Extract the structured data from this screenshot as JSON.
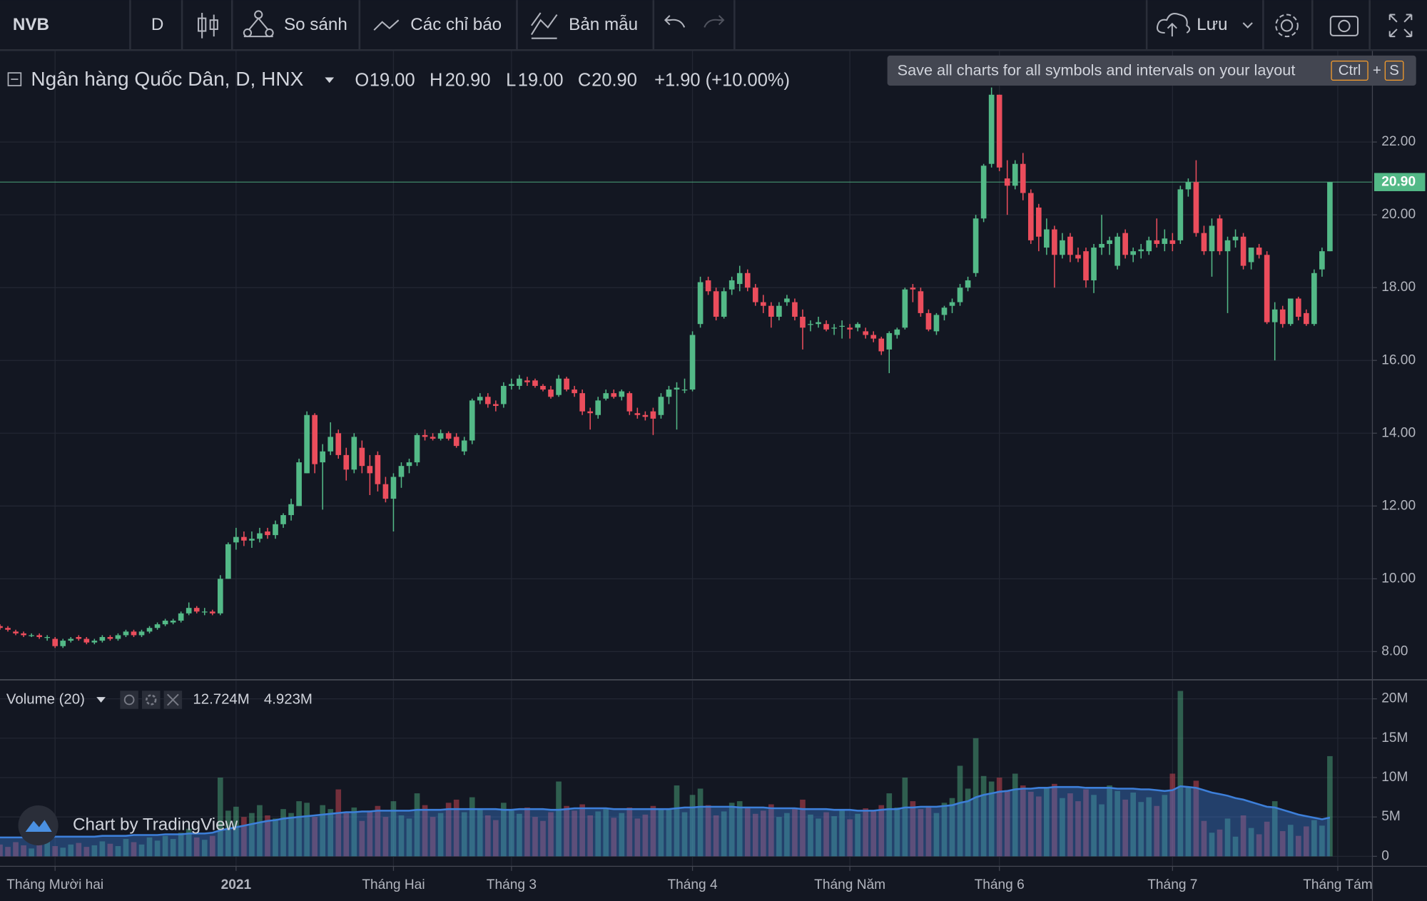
{
  "toolbar": {
    "symbol": "NVB",
    "interval": "D",
    "compare": "So sánh",
    "indicators": "Các chỉ báo",
    "templates": "Bản mẫu",
    "save": "Lưu"
  },
  "tooltip": {
    "text": "Save all charts for all symbols and intervals on your layout",
    "key1": "Ctrl",
    "plus": "+",
    "key2": "S"
  },
  "watermark": "Chart by TradingView",
  "chart_data": {
    "type": "candlestick",
    "legend": {
      "symbol": "Ngân hàng Quốc Dân, D, HNX",
      "fields": [
        {
          "key": "O",
          "text": "19.00"
        },
        {
          "key": "H",
          "text": "20.90"
        },
        {
          "key": "L",
          "text": "19.00"
        },
        {
          "key": "C",
          "text": "20.90"
        }
      ],
      "change": "+1.90 (+10.00%)"
    },
    "up_color": "#53b987",
    "down_color": "#eb4d5c",
    "grid": true,
    "xlim": [
      0,
      174.4
    ],
    "xticks": [
      {
        "value": 7,
        "label": "Tháng Mười hai"
      },
      {
        "value": 30,
        "label": "2021"
      },
      {
        "value": 50,
        "label": "Tháng Hai"
      },
      {
        "value": 65,
        "label": "Tháng 3"
      },
      {
        "value": 88,
        "label": "Tháng 4"
      },
      {
        "value": 108,
        "label": "Tháng Năm"
      },
      {
        "value": 127,
        "label": "Tháng 6"
      },
      {
        "value": 149,
        "label": "Tháng 7"
      },
      {
        "value": 170,
        "label": "Tháng Tám"
      }
    ],
    "ylim": [
      7.25,
      24.35
    ],
    "yticks": [
      {
        "value": 8,
        "label": "8.00"
      },
      {
        "value": 10,
        "label": "10.00"
      },
      {
        "value": 12,
        "label": "12.00"
      },
      {
        "value": 14,
        "label": "14.00"
      },
      {
        "value": 16,
        "label": "16.00"
      },
      {
        "value": 18,
        "label": "18.00"
      },
      {
        "value": 20,
        "label": "20.00"
      },
      {
        "value": 22,
        "label": "22.00"
      }
    ],
    "last_price": {
      "value": 20.9,
      "label": "20.90"
    },
    "ohlc": [
      [
        8.7,
        8.75,
        8.6,
        8.65
      ],
      [
        8.65,
        8.7,
        8.55,
        8.6
      ],
      [
        8.55,
        8.6,
        8.45,
        8.5
      ],
      [
        8.5,
        8.55,
        8.4,
        8.45
      ],
      [
        8.45,
        8.5,
        8.4,
        8.45
      ],
      [
        8.45,
        8.5,
        8.35,
        8.4
      ],
      [
        8.4,
        8.45,
        8.3,
        8.4
      ],
      [
        8.35,
        8.4,
        8.1,
        8.15
      ],
      [
        8.15,
        8.35,
        8.1,
        8.3
      ],
      [
        8.3,
        8.4,
        8.25,
        8.35
      ],
      [
        8.4,
        8.45,
        8.3,
        8.35
      ],
      [
        8.35,
        8.4,
        8.2,
        8.25
      ],
      [
        8.25,
        8.35,
        8.2,
        8.3
      ],
      [
        8.3,
        8.45,
        8.25,
        8.4
      ],
      [
        8.4,
        8.45,
        8.3,
        8.35
      ],
      [
        8.35,
        8.5,
        8.3,
        8.45
      ],
      [
        8.45,
        8.6,
        8.4,
        8.55
      ],
      [
        8.55,
        8.6,
        8.4,
        8.45
      ],
      [
        8.45,
        8.6,
        8.4,
        8.55
      ],
      [
        8.55,
        8.7,
        8.5,
        8.65
      ],
      [
        8.65,
        8.8,
        8.6,
        8.75
      ],
      [
        8.75,
        8.9,
        8.7,
        8.85
      ],
      [
        8.8,
        8.9,
        8.75,
        8.85
      ],
      [
        8.85,
        9.1,
        8.8,
        9.05
      ],
      [
        9.05,
        9.35,
        9.0,
        9.2
      ],
      [
        9.2,
        9.25,
        9.05,
        9.1
      ],
      [
        9.1,
        9.2,
        9.0,
        9.1
      ],
      [
        9.1,
        9.15,
        9.0,
        9.05
      ],
      [
        9.05,
        10.1,
        9.0,
        10.0
      ],
      [
        10.0,
        11.0,
        10.0,
        10.95
      ],
      [
        11.0,
        11.4,
        10.8,
        11.15
      ],
      [
        11.15,
        11.3,
        10.9,
        11.05
      ],
      [
        11.05,
        11.3,
        10.85,
        11.1
      ],
      [
        11.1,
        11.4,
        11.0,
        11.25
      ],
      [
        11.3,
        11.4,
        11.1,
        11.2
      ],
      [
        11.2,
        11.6,
        11.1,
        11.5
      ],
      [
        11.5,
        11.8,
        11.4,
        11.75
      ],
      [
        11.75,
        12.2,
        11.6,
        12.05
      ],
      [
        12.0,
        13.3,
        12.0,
        13.2
      ],
      [
        12.9,
        14.6,
        12.9,
        14.5
      ],
      [
        14.5,
        14.55,
        12.9,
        13.15
      ],
      [
        13.2,
        13.7,
        11.9,
        13.5
      ],
      [
        13.5,
        14.3,
        13.4,
        13.9
      ],
      [
        14.0,
        14.1,
        13.3,
        13.4
      ],
      [
        13.4,
        13.6,
        12.7,
        13.0
      ],
      [
        13.0,
        14.0,
        12.9,
        13.9
      ],
      [
        13.6,
        13.8,
        12.9,
        13.1
      ],
      [
        13.1,
        13.4,
        12.3,
        12.9
      ],
      [
        13.4,
        13.5,
        12.4,
        12.6
      ],
      [
        12.6,
        12.8,
        12.1,
        12.2
      ],
      [
        12.2,
        12.9,
        11.3,
        12.8
      ],
      [
        12.8,
        13.2,
        12.5,
        13.1
      ],
      [
        13.1,
        13.3,
        12.9,
        13.2
      ],
      [
        13.2,
        14.0,
        13.1,
        13.95
      ],
      [
        13.95,
        14.1,
        13.8,
        13.9
      ],
      [
        13.9,
        14.0,
        13.8,
        13.85
      ],
      [
        13.85,
        14.1,
        13.8,
        14.0
      ],
      [
        14.0,
        14.05,
        13.8,
        13.85
      ],
      [
        13.9,
        14.0,
        13.6,
        13.65
      ],
      [
        13.5,
        13.9,
        13.4,
        13.8
      ],
      [
        13.8,
        14.95,
        13.7,
        14.9
      ],
      [
        14.9,
        15.1,
        14.8,
        15.0
      ],
      [
        15.0,
        15.1,
        14.7,
        14.8
      ],
      [
        14.8,
        14.9,
        14.6,
        14.75
      ],
      [
        14.8,
        15.4,
        14.7,
        15.3
      ],
      [
        15.3,
        15.5,
        15.2,
        15.35
      ],
      [
        15.3,
        15.6,
        15.2,
        15.5
      ],
      [
        15.45,
        15.55,
        15.3,
        15.4
      ],
      [
        15.45,
        15.5,
        15.25,
        15.3
      ],
      [
        15.3,
        15.35,
        15.15,
        15.2
      ],
      [
        15.2,
        15.3,
        14.95,
        15.0
      ],
      [
        15.05,
        15.6,
        15.0,
        15.5
      ],
      [
        15.5,
        15.55,
        15.15,
        15.2
      ],
      [
        15.2,
        15.3,
        15.0,
        15.1
      ],
      [
        15.1,
        15.2,
        14.5,
        14.6
      ],
      [
        14.6,
        14.7,
        14.1,
        14.55
      ],
      [
        14.5,
        15.0,
        14.4,
        14.9
      ],
      [
        14.95,
        15.2,
        14.9,
        15.1
      ],
      [
        15.1,
        15.2,
        14.95,
        15.0
      ],
      [
        15.0,
        15.2,
        14.9,
        15.15
      ],
      [
        15.1,
        15.15,
        14.5,
        14.6
      ],
      [
        14.55,
        14.7,
        14.4,
        14.5
      ],
      [
        14.5,
        14.6,
        14.35,
        14.45
      ],
      [
        14.6,
        14.7,
        13.95,
        14.4
      ],
      [
        14.5,
        15.1,
        14.4,
        15.0
      ],
      [
        15.0,
        15.3,
        14.8,
        15.2
      ],
      [
        15.2,
        15.4,
        14.1,
        15.25
      ],
      [
        15.2,
        15.5,
        15.1,
        15.2
      ],
      [
        15.2,
        16.8,
        15.15,
        16.7
      ],
      [
        17.0,
        18.3,
        16.9,
        18.15
      ],
      [
        18.2,
        18.3,
        17.8,
        17.9
      ],
      [
        17.9,
        18.0,
        17.1,
        17.2
      ],
      [
        17.2,
        18.0,
        17.15,
        17.9
      ],
      [
        17.95,
        18.3,
        17.8,
        18.2
      ],
      [
        18.1,
        18.6,
        17.9,
        18.4
      ],
      [
        18.4,
        18.5,
        17.9,
        18.0
      ],
      [
        18.0,
        18.1,
        17.5,
        17.6
      ],
      [
        17.6,
        17.8,
        17.3,
        17.5
      ],
      [
        17.5,
        17.6,
        16.9,
        17.2
      ],
      [
        17.2,
        17.6,
        17.1,
        17.5
      ],
      [
        17.6,
        17.8,
        17.5,
        17.7
      ],
      [
        17.6,
        17.7,
        17.1,
        17.2
      ],
      [
        17.2,
        17.4,
        16.3,
        16.9
      ],
      [
        17.0,
        17.1,
        16.8,
        17.0
      ],
      [
        17.0,
        17.2,
        16.9,
        17.05
      ],
      [
        17.0,
        17.1,
        16.8,
        16.85
      ],
      [
        16.9,
        17.0,
        16.7,
        16.9
      ],
      [
        16.95,
        17.1,
        16.6,
        16.95
      ],
      [
        16.9,
        17.0,
        16.6,
        16.85
      ],
      [
        16.9,
        17.05,
        16.8,
        17.0
      ],
      [
        16.8,
        16.9,
        16.6,
        16.7
      ],
      [
        16.7,
        16.8,
        16.5,
        16.6
      ],
      [
        16.6,
        16.65,
        16.15,
        16.25
      ],
      [
        16.3,
        16.8,
        15.65,
        16.75
      ],
      [
        16.7,
        16.9,
        16.6,
        16.85
      ],
      [
        16.9,
        18.0,
        16.85,
        17.95
      ],
      [
        18.0,
        18.1,
        17.6,
        17.95
      ],
      [
        17.9,
        18.0,
        17.2,
        17.3
      ],
      [
        17.3,
        17.4,
        16.8,
        16.85
      ],
      [
        16.8,
        17.3,
        16.7,
        17.25
      ],
      [
        17.25,
        17.5,
        17.1,
        17.45
      ],
      [
        17.5,
        17.7,
        17.3,
        17.6
      ],
      [
        17.6,
        18.1,
        17.5,
        18.0
      ],
      [
        18.0,
        18.3,
        17.9,
        18.2
      ],
      [
        18.4,
        20.0,
        18.3,
        19.9
      ],
      [
        19.9,
        21.4,
        19.8,
        21.35
      ],
      [
        21.4,
        23.5,
        21.3,
        23.3
      ],
      [
        23.3,
        23.3,
        21.2,
        21.3
      ],
      [
        21.0,
        21.5,
        20.0,
        20.8
      ],
      [
        20.8,
        21.5,
        20.7,
        21.4
      ],
      [
        21.4,
        21.7,
        20.4,
        20.6
      ],
      [
        20.6,
        20.7,
        19.2,
        19.3
      ],
      [
        20.2,
        20.3,
        19.0,
        19.4
      ],
      [
        19.1,
        19.9,
        18.9,
        19.6
      ],
      [
        19.6,
        19.7,
        18.0,
        18.9
      ],
      [
        18.9,
        19.5,
        18.8,
        19.3
      ],
      [
        19.4,
        19.5,
        18.7,
        18.9
      ],
      [
        18.9,
        19.1,
        18.7,
        18.8
      ],
      [
        19.0,
        19.1,
        18.0,
        18.2
      ],
      [
        18.2,
        19.2,
        17.85,
        19.1
      ],
      [
        19.1,
        20.0,
        18.9,
        19.2
      ],
      [
        19.2,
        19.4,
        18.9,
        19.3
      ],
      [
        18.6,
        19.5,
        18.5,
        19.4
      ],
      [
        19.5,
        19.6,
        18.8,
        18.9
      ],
      [
        18.9,
        19.1,
        18.7,
        19.0
      ],
      [
        19.0,
        19.2,
        18.8,
        19.05
      ],
      [
        19.0,
        19.4,
        18.9,
        19.3
      ],
      [
        19.3,
        19.9,
        19.1,
        19.2
      ],
      [
        19.2,
        19.6,
        19.0,
        19.35
      ],
      [
        19.3,
        19.5,
        19.0,
        19.2
      ],
      [
        19.3,
        20.8,
        19.2,
        20.7
      ],
      [
        20.7,
        21.0,
        20.5,
        20.9
      ],
      [
        20.9,
        21.5,
        19.4,
        19.5
      ],
      [
        19.5,
        19.7,
        18.9,
        19.0
      ],
      [
        19.0,
        19.9,
        18.3,
        19.7
      ],
      [
        19.9,
        20.0,
        18.9,
        19.0
      ],
      [
        19.0,
        19.4,
        17.3,
        19.3
      ],
      [
        19.3,
        19.6,
        19.1,
        19.4
      ],
      [
        19.4,
        19.5,
        18.5,
        18.6
      ],
      [
        18.7,
        19.1,
        18.5,
        19.1
      ],
      [
        19.1,
        19.2,
        18.8,
        18.9
      ],
      [
        18.9,
        19.0,
        17.0,
        17.05
      ],
      [
        17.05,
        17.6,
        16.0,
        17.4
      ],
      [
        17.4,
        17.5,
        16.9,
        17.0
      ],
      [
        17.0,
        17.7,
        16.95,
        17.7
      ],
      [
        17.7,
        17.75,
        17.1,
        17.2
      ],
      [
        17.3,
        17.4,
        16.95,
        17.0
      ],
      [
        17.0,
        18.5,
        16.95,
        18.4
      ],
      [
        18.5,
        19.1,
        18.3,
        19.0
      ],
      [
        19.0,
        20.9,
        19.0,
        20.9
      ]
    ],
    "volume": {
      "name": "Volume (20)",
      "ylim": [
        -1.27,
        22.3
      ],
      "yticks": [
        0,
        {
          "value": 5,
          "label": "5M"
        },
        {
          "value": 10,
          "label": "10M"
        },
        {
          "value": 15,
          "label": "15M"
        },
        {
          "value": 20,
          "label": "20M"
        }
      ],
      "values": [
        1.5,
        1.2,
        1.8,
        1.4,
        1.0,
        1.6,
        2.0,
        1.3,
        1.1,
        1.5,
        1.7,
        1.2,
        1.4,
        1.9,
        1.6,
        1.3,
        2.2,
        1.8,
        1.5,
        2.4,
        2.0,
        2.6,
        2.2,
        3.0,
        3.5,
        2.4,
        2.1,
        2.6,
        10.0,
        5.8,
        6.3,
        5.0,
        5.5,
        6.5,
        5.2,
        4.8,
        6.0,
        5.5,
        7.0,
        6.8,
        5.0,
        6.5,
        6.0,
        8.5,
        5.5,
        6.2,
        4.5,
        5.8,
        6.4,
        5.0,
        7.0,
        5.2,
        4.8,
        8.0,
        6.5,
        5.0,
        5.5,
        6.8,
        7.2,
        5.6,
        7.5,
        6.0,
        5.2,
        4.6,
        6.8,
        5.8,
        5.4,
        6.2,
        5.0,
        4.5,
        5.6,
        9.5,
        6.4,
        5.8,
        6.6,
        5.2,
        5.7,
        6.0,
        4.9,
        5.5,
        6.2,
        4.8,
        5.3,
        6.4,
        5.9,
        6.1,
        9.0,
        5.6,
        7.8,
        8.6,
        6.5,
        5.2,
        5.7,
        6.8,
        7.0,
        6.2,
        5.4,
        5.8,
        6.6,
        5.0,
        5.5,
        6.0,
        7.2,
        5.3,
        4.8,
        5.6,
        5.1,
        5.9,
        4.7,
        5.4,
        6.1,
        5.8,
        6.5,
        8.0,
        6.2,
        10.0,
        7.0,
        6.0,
        6.4,
        5.5,
        6.8,
        7.4,
        11.5,
        8.6,
        15.0,
        10.2,
        9.5,
        10.0,
        8.4,
        10.5,
        9.0,
        8.2,
        7.6,
        8.8,
        9.2,
        7.4,
        8.0,
        7.0,
        8.5,
        7.8,
        6.6,
        9.0,
        8.3,
        7.2,
        8.1,
        6.9,
        7.5,
        6.4,
        7.8,
        10.5,
        21.0,
        8.8,
        9.6,
        4.5,
        3.0,
        3.4,
        4.8,
        2.5,
        5.2,
        3.6,
        2.8,
        4.4,
        7.0,
        3.2,
        4.0,
        2.6,
        3.8,
        4.6,
        3.9,
        12.724
      ],
      "last_label": "12.724M"
    },
    "ma": {
      "color": "#3d7fd9",
      "values": [
        2.4,
        2.4,
        2.4,
        2.4,
        2.4,
        2.4,
        2.4,
        2.5,
        2.5,
        2.5,
        2.5,
        2.5,
        2.5,
        2.6,
        2.6,
        2.6,
        2.6,
        2.7,
        2.7,
        2.7,
        2.7,
        2.8,
        2.8,
        2.8,
        2.9,
        2.9,
        2.9,
        3.0,
        3.3,
        3.5,
        3.7,
        3.9,
        4.1,
        4.3,
        4.5,
        4.6,
        4.8,
        4.9,
        5.0,
        5.1,
        5.2,
        5.3,
        5.4,
        5.5,
        5.6,
        5.6,
        5.7,
        5.7,
        5.8,
        5.8,
        5.8,
        5.8,
        5.8,
        5.9,
        5.9,
        5.9,
        5.9,
        6.0,
        6.0,
        6.0,
        6.0,
        6.0,
        6.0,
        6.0,
        5.9,
        5.9,
        6.0,
        6.0,
        6.0,
        6.0,
        5.9,
        5.9,
        6.0,
        6.1,
        6.1,
        6.1,
        6.1,
        6.1,
        6.0,
        6.0,
        6.0,
        6.0,
        6.0,
        6.0,
        6.0,
        6.0,
        6.1,
        6.2,
        6.2,
        6.3,
        6.3,
        6.3,
        6.3,
        6.3,
        6.2,
        6.2,
        6.2,
        6.2,
        6.1,
        6.1,
        6.1,
        6.1,
        6.0,
        6.0,
        6.0,
        6.0,
        5.9,
        5.9,
        5.9,
        5.8,
        5.8,
        5.8,
        5.9,
        6.0,
        6.0,
        6.2,
        6.2,
        6.3,
        6.3,
        6.3,
        6.4,
        6.5,
        6.8,
        7.0,
        7.5,
        7.8,
        8.0,
        8.2,
        8.3,
        8.5,
        8.6,
        8.6,
        8.7,
        8.7,
        8.8,
        8.8,
        8.8,
        8.8,
        8.7,
        8.7,
        8.7,
        8.7,
        8.6,
        8.6,
        8.6,
        8.5,
        8.5,
        8.4,
        8.3,
        8.4,
        8.9,
        8.8,
        8.7,
        8.4,
        8.1,
        7.9,
        7.7,
        7.4,
        7.2,
        6.9,
        6.6,
        6.3,
        6.2,
        5.9,
        5.6,
        5.3,
        5.1,
        4.9,
        4.7,
        4.923
      ],
      "last_label": "4.923M"
    }
  }
}
